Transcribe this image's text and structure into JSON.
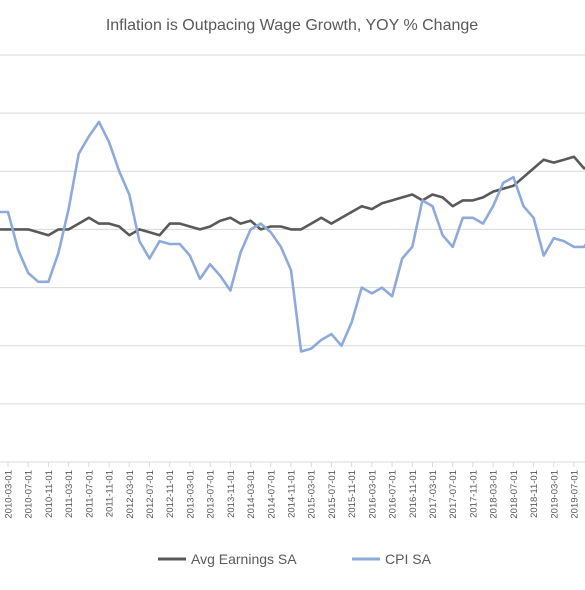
{
  "chart_data": {
    "type": "line",
    "title": "Inflation is Outpacing Wage Growth, YOY % Change",
    "xlabel": "",
    "ylabel": "",
    "x_tick_labels": [
      "2010-03-01",
      "2010-07-01",
      "2010-11-01",
      "2011-03-01",
      "2011-07-01",
      "2011-11-01",
      "2012-03-01",
      "2012-07-01",
      "2012-11-01",
      "2013-03-01",
      "2013-07-01",
      "2013-11-01",
      "2014-03-01",
      "2014-07-01",
      "2014-11-01",
      "2015-03-01",
      "2015-07-01",
      "2015-11-01",
      "2016-03-01",
      "2016-07-01",
      "2016-11-01",
      "2017-03-01",
      "2017-07-01",
      "2017-11-01",
      "2018-03-01",
      "2018-07-01",
      "2018-11-01",
      "2019-03-01",
      "2019-07-01"
    ],
    "grid": "horizontal",
    "legend_position": "bottom",
    "colors": {
      "avg_earnings": "#595959",
      "cpi": "#8eaadb",
      "grid": "#d9d9d9"
    },
    "series": [
      {
        "name": "Avg Earnings SA",
        "points": [
          [
            "2010-01",
            2.0
          ],
          [
            "2010-03",
            2.0
          ],
          [
            "2010-05",
            2.0
          ],
          [
            "2010-07",
            2.0
          ],
          [
            "2010-09",
            1.95
          ],
          [
            "2010-11",
            1.9
          ],
          [
            "2011-01",
            2.0
          ],
          [
            "2011-03",
            2.0
          ],
          [
            "2011-05",
            2.1
          ],
          [
            "2011-07",
            2.2
          ],
          [
            "2011-09",
            2.1
          ],
          [
            "2011-11",
            2.1
          ],
          [
            "2012-01",
            2.05
          ],
          [
            "2012-03",
            1.9
          ],
          [
            "2012-05",
            2.0
          ],
          [
            "2012-07",
            1.95
          ],
          [
            "2012-09",
            1.9
          ],
          [
            "2012-11",
            2.1
          ],
          [
            "2013-01",
            2.1
          ],
          [
            "2013-03",
            2.05
          ],
          [
            "2013-05",
            2.0
          ],
          [
            "2013-07",
            2.05
          ],
          [
            "2013-09",
            2.15
          ],
          [
            "2013-11",
            2.2
          ],
          [
            "2014-01",
            2.1
          ],
          [
            "2014-03",
            2.15
          ],
          [
            "2014-05",
            2.0
          ],
          [
            "2014-07",
            2.05
          ],
          [
            "2014-09",
            2.05
          ],
          [
            "2014-11",
            2.0
          ],
          [
            "2015-01",
            2.0
          ],
          [
            "2015-03",
            2.1
          ],
          [
            "2015-05",
            2.2
          ],
          [
            "2015-07",
            2.1
          ],
          [
            "2015-09",
            2.2
          ],
          [
            "2015-11",
            2.3
          ],
          [
            "2016-01",
            2.4
          ],
          [
            "2016-03",
            2.35
          ],
          [
            "2016-05",
            2.45
          ],
          [
            "2016-07",
            2.5
          ],
          [
            "2016-09",
            2.55
          ],
          [
            "2016-11",
            2.6
          ],
          [
            "2017-01",
            2.5
          ],
          [
            "2017-03",
            2.6
          ],
          [
            "2017-05",
            2.55
          ],
          [
            "2017-07",
            2.4
          ],
          [
            "2017-09",
            2.5
          ],
          [
            "2017-11",
            2.5
          ],
          [
            "2018-01",
            2.55
          ],
          [
            "2018-03",
            2.65
          ],
          [
            "2018-05",
            2.7
          ],
          [
            "2018-07",
            2.75
          ],
          [
            "2018-09",
            2.9
          ],
          [
            "2018-11",
            3.05
          ],
          [
            "2019-01",
            3.2
          ],
          [
            "2019-03",
            3.15
          ],
          [
            "2019-05",
            3.2
          ],
          [
            "2019-07",
            3.25
          ],
          [
            "2019-09",
            3.05
          ],
          [
            "2019-11",
            3.15
          ]
        ]
      },
      {
        "name": "CPI SA",
        "points": [
          [
            "2010-01",
            2.3
          ],
          [
            "2010-03",
            2.3
          ],
          [
            "2010-05",
            1.65
          ],
          [
            "2010-07",
            1.25
          ],
          [
            "2010-09",
            1.1
          ],
          [
            "2010-11",
            1.1
          ],
          [
            "2011-01",
            1.6
          ],
          [
            "2011-03",
            2.35
          ],
          [
            "2011-05",
            3.3
          ],
          [
            "2011-07",
            3.6
          ],
          [
            "2011-09",
            3.85
          ],
          [
            "2011-11",
            3.5
          ],
          [
            "2012-01",
            3.0
          ],
          [
            "2012-03",
            2.6
          ],
          [
            "2012-05",
            1.8
          ],
          [
            "2012-07",
            1.5
          ],
          [
            "2012-09",
            1.8
          ],
          [
            "2012-11",
            1.75
          ],
          [
            "2013-01",
            1.75
          ],
          [
            "2013-03",
            1.55
          ],
          [
            "2013-05",
            1.15
          ],
          [
            "2013-07",
            1.4
          ],
          [
            "2013-09",
            1.2
          ],
          [
            "2013-11",
            0.95
          ],
          [
            "2014-01",
            1.6
          ],
          [
            "2014-03",
            2.0
          ],
          [
            "2014-05",
            2.1
          ],
          [
            "2014-07",
            1.95
          ],
          [
            "2014-09",
            1.7
          ],
          [
            "2014-11",
            1.3
          ],
          [
            "2015-01",
            -0.1
          ],
          [
            "2015-03",
            -0.05
          ],
          [
            "2015-05",
            0.1
          ],
          [
            "2015-07",
            0.2
          ],
          [
            "2015-09",
            0.0
          ],
          [
            "2015-11",
            0.4
          ],
          [
            "2016-01",
            1.0
          ],
          [
            "2016-03",
            0.9
          ],
          [
            "2016-05",
            1.0
          ],
          [
            "2016-07",
            0.85
          ],
          [
            "2016-09",
            1.5
          ],
          [
            "2016-11",
            1.7
          ],
          [
            "2017-01",
            2.5
          ],
          [
            "2017-03",
            2.4
          ],
          [
            "2017-05",
            1.9
          ],
          [
            "2017-07",
            1.7
          ],
          [
            "2017-09",
            2.2
          ],
          [
            "2017-11",
            2.2
          ],
          [
            "2018-01",
            2.1
          ],
          [
            "2018-03",
            2.4
          ],
          [
            "2018-05",
            2.8
          ],
          [
            "2018-07",
            2.9
          ],
          [
            "2018-09",
            2.4
          ],
          [
            "2018-11",
            2.2
          ],
          [
            "2019-01",
            1.55
          ],
          [
            "2019-03",
            1.85
          ],
          [
            "2019-05",
            1.8
          ],
          [
            "2019-07",
            1.7
          ],
          [
            "2019-09",
            1.7
          ],
          [
            "2019-11",
            1.95
          ]
        ]
      }
    ]
  }
}
